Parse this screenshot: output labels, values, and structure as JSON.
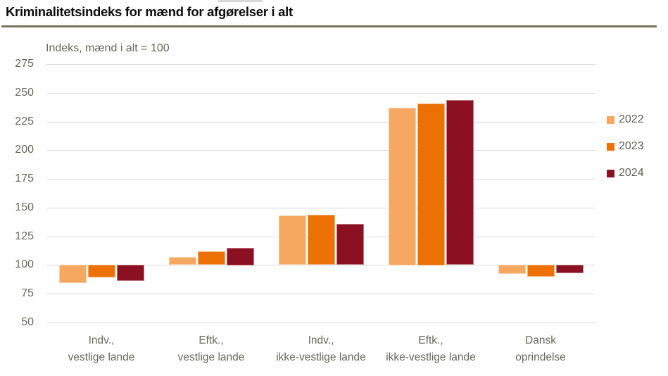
{
  "page": {
    "title": "Kriminalitetsindeks for mænd for afgørelser i alt",
    "subtitle": "Indeks, mænd i alt = 100"
  },
  "chart_data": {
    "type": "bar",
    "title": "Kriminalitetsindeks for mænd for afgørelser i alt",
    "subtitle": "Indeks, mænd i alt = 100",
    "categories": [
      "Indv., vestlige lande",
      "Eftk., vestlige lande",
      "Indv., ikke-vestlige lande",
      "Eftk., ikke-vestlige lande",
      "Dansk oprindelse"
    ],
    "category_label_lines": [
      [
        "Indv.,",
        "vestlige lande"
      ],
      [
        "Eftk.,",
        "vestlige lande"
      ],
      [
        "Indv.,",
        "ikke-vestlige lande"
      ],
      [
        "Eftk.,",
        "ikke-vestlige lande"
      ],
      [
        "Dansk",
        "oprindelse"
      ]
    ],
    "series": [
      {
        "name": "2022",
        "color": "#f6a861",
        "values": [
          84,
          107,
          143,
          237,
          92
        ]
      },
      {
        "name": "2023",
        "color": "#ec7004",
        "values": [
          89,
          112,
          144,
          241,
          90
        ]
      },
      {
        "name": "2024",
        "color": "#8b1021",
        "values": [
          86,
          115,
          136,
          244,
          93
        ]
      }
    ],
    "baseline": 100,
    "ylim": [
      50,
      275
    ],
    "y_ticks": [
      275,
      250,
      225,
      200,
      175,
      150,
      125,
      100,
      75,
      50
    ],
    "grid": true,
    "legend_position": "right",
    "xlabel": "",
    "ylabel": "Indeks, mænd i alt = 100"
  },
  "colors": {
    "grid": "#d9d9d9",
    "axis_text": "#68685e",
    "title_rule": "#76765f",
    "background": "#ffffff"
  }
}
